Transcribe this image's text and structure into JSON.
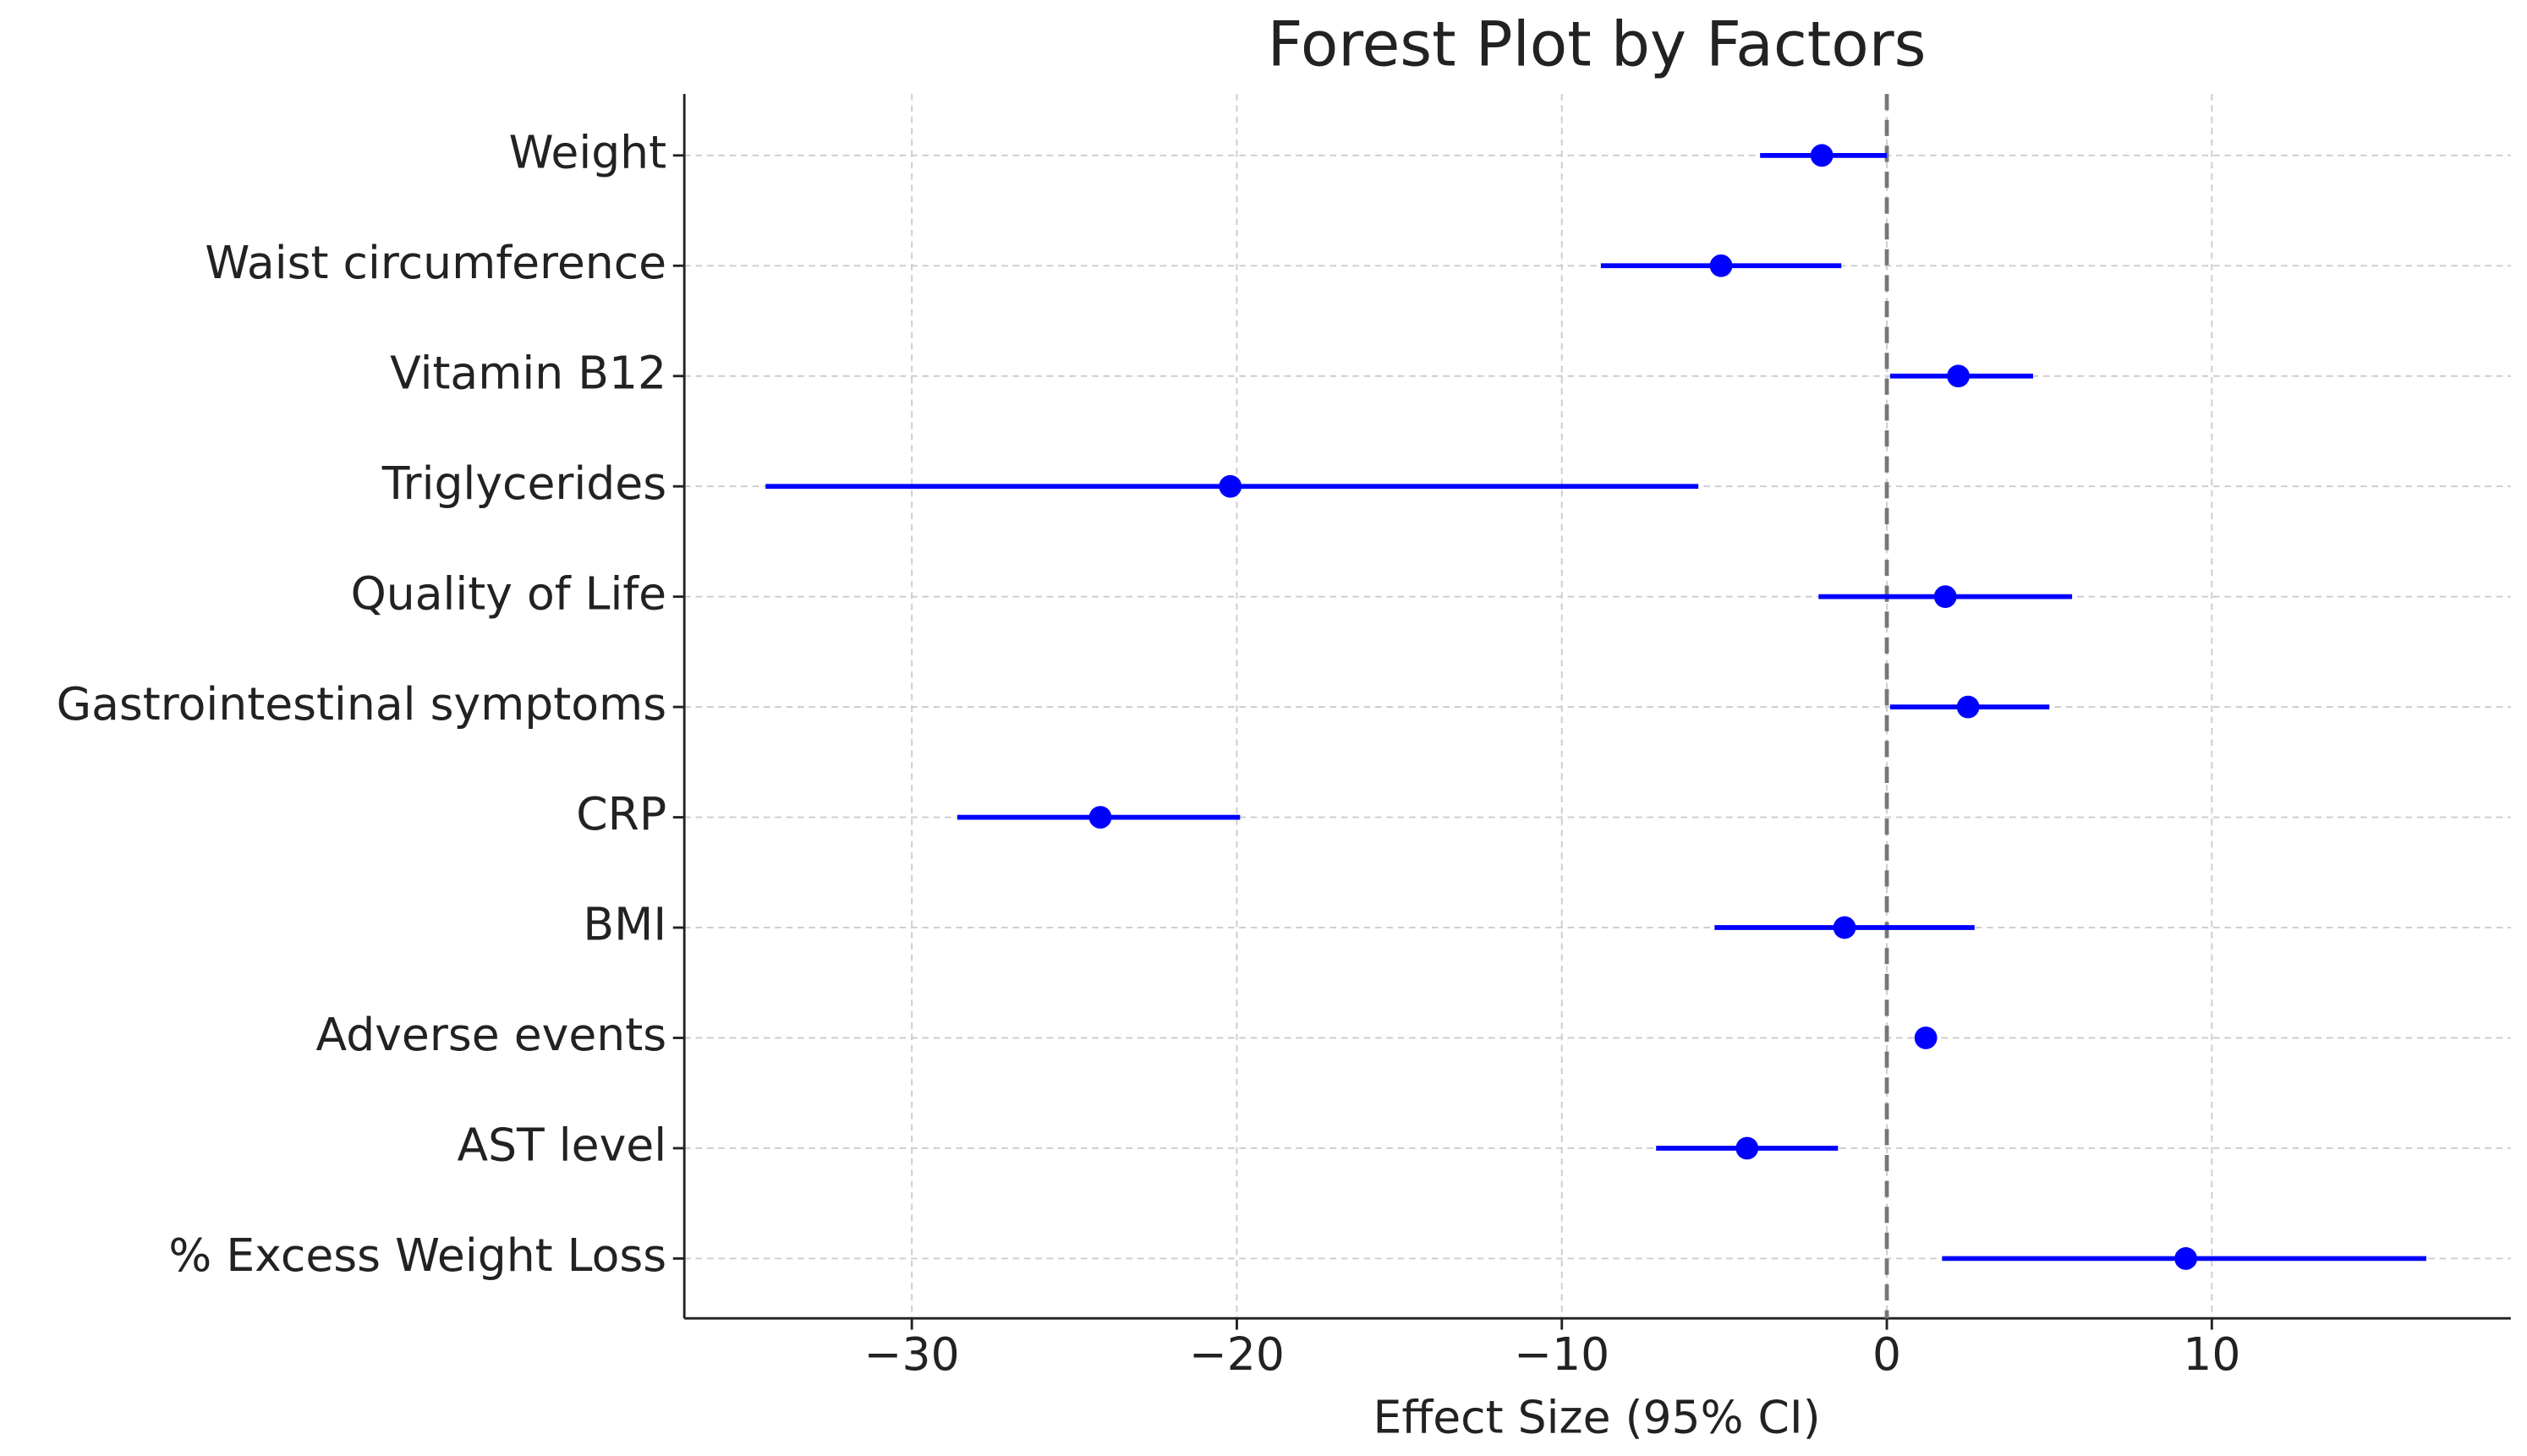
{
  "chart_data": {
    "type": "forest",
    "title": "Forest Plot by Factors",
    "x_label": "Effect Size (95% CI)",
    "categories": [
      "Weight",
      "Waist circumference",
      "Vitamin B12",
      "Triglycerides",
      "Quality of Life",
      "Gastrointestinal symptoms",
      "CRP",
      "BMI",
      "Adverse events",
      "AST level",
      "% Excess Weight Loss"
    ],
    "values": [
      -2.0,
      -5.1,
      2.2,
      -20.2,
      1.8,
      2.5,
      -24.2,
      -1.3,
      1.2,
      -4.3,
      9.2
    ],
    "ci_low": [
      -3.9,
      -8.8,
      0.1,
      -34.5,
      -2.1,
      0.1,
      -28.6,
      -5.3,
      0.9,
      -7.1,
      1.7
    ],
    "ci_high": [
      0.0,
      -1.4,
      4.5,
      -5.8,
      5.7,
      5.0,
      -19.9,
      2.7,
      1.5,
      -1.5,
      16.6
    ],
    "color": "#0000ff",
    "reference_line": 0,
    "reference_color": "#777777",
    "xlim": [
      -37,
      19.2
    ],
    "xticks": [
      {
        "value": -30,
        "label": "−30"
      },
      {
        "value": -20,
        "label": "−20"
      },
      {
        "value": -10,
        "label": "−10"
      },
      0,
      10
    ],
    "grid": true
  }
}
